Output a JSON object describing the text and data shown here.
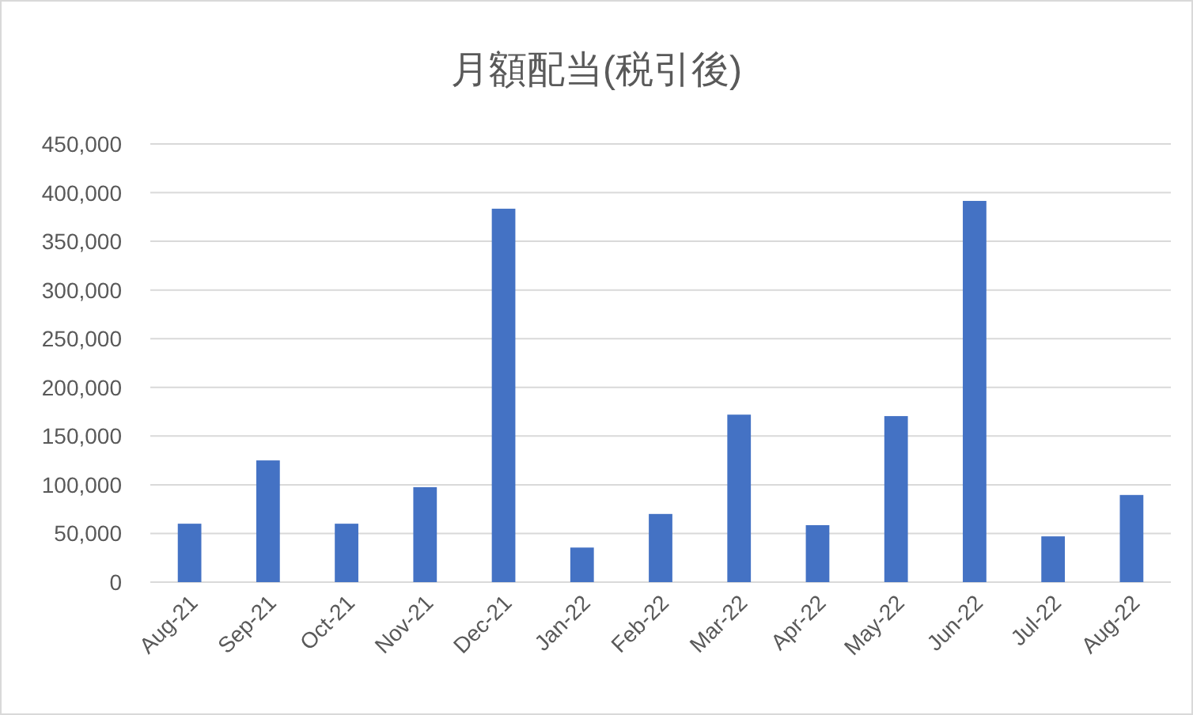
{
  "chart_data": {
    "type": "bar",
    "title": "月額配当(税引後)",
    "categories": [
      "Aug-21",
      "Sep-21",
      "Oct-21",
      "Nov-21",
      "Dec-21",
      "Jan-22",
      "Feb-22",
      "Mar-22",
      "Apr-22",
      "May-22",
      "Jun-22",
      "Jul-22",
      "Aug-22"
    ],
    "values": [
      60000,
      125000,
      60000,
      97500,
      383500,
      35500,
      70000,
      172000,
      58500,
      170500,
      391500,
      47000,
      89500
    ],
    "color": "#4472c4",
    "ylim": [
      0,
      450000
    ],
    "yticks": [
      {
        "value": 0,
        "label": "0"
      },
      {
        "value": 50000,
        "label": "50,000"
      },
      {
        "value": 100000,
        "label": "100,000"
      },
      {
        "value": 150000,
        "label": "150,000"
      },
      {
        "value": 200000,
        "label": "200,000"
      },
      {
        "value": 250000,
        "label": "250,000"
      },
      {
        "value": 300000,
        "label": "300,000"
      },
      {
        "value": 350000,
        "label": "350,000"
      },
      {
        "value": 400000,
        "label": "400,000"
      },
      {
        "value": 450000,
        "label": "450,000"
      }
    ],
    "grid": "y"
  }
}
